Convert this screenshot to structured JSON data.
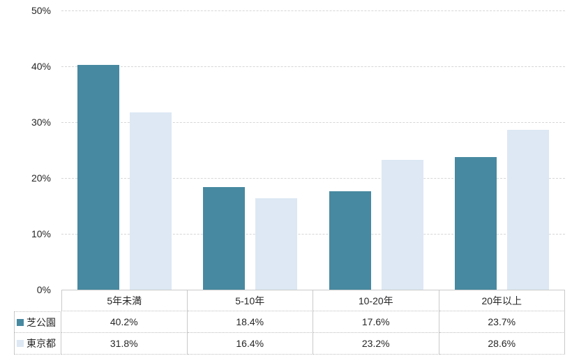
{
  "chart_data": {
    "type": "bar",
    "title": "",
    "xlabel": "",
    "ylabel": "",
    "categories": [
      "5年未満",
      "5-10年",
      "10-20年",
      "20年以上"
    ],
    "series": [
      {
        "name": "芝公園",
        "color": "#4789a0",
        "values": [
          40.2,
          18.4,
          17.6,
          23.7
        ]
      },
      {
        "name": "東京都",
        "color": "#dde8f4",
        "values": [
          31.8,
          16.4,
          23.2,
          28.6
        ]
      }
    ],
    "ylim": [
      0,
      50
    ],
    "ytick_labels": [
      "0%",
      "10%",
      "20%",
      "30%",
      "40%",
      "50%"
    ],
    "grid": "horizontal-dashed",
    "legend_position": "data-table-left"
  },
  "table": {
    "header_cells": [
      "5年未満",
      "5-10年",
      "10-20年",
      "20年以上"
    ],
    "rows": [
      {
        "label": "芝公園",
        "values": [
          "40.2%",
          "18.4%",
          "17.6%",
          "23.7%"
        ]
      },
      {
        "label": "東京都",
        "values": [
          "31.8%",
          "16.4%",
          "23.2%",
          "28.6%"
        ]
      }
    ]
  },
  "colors": {
    "series1": "#4789a0",
    "series2": "#dde8f4",
    "gridline": "#d6d6d6",
    "table_border_solid": "#c9c9c9",
    "table_border_dotted": "#bdbdbd",
    "text": "#262626",
    "background": "#ffffff"
  }
}
